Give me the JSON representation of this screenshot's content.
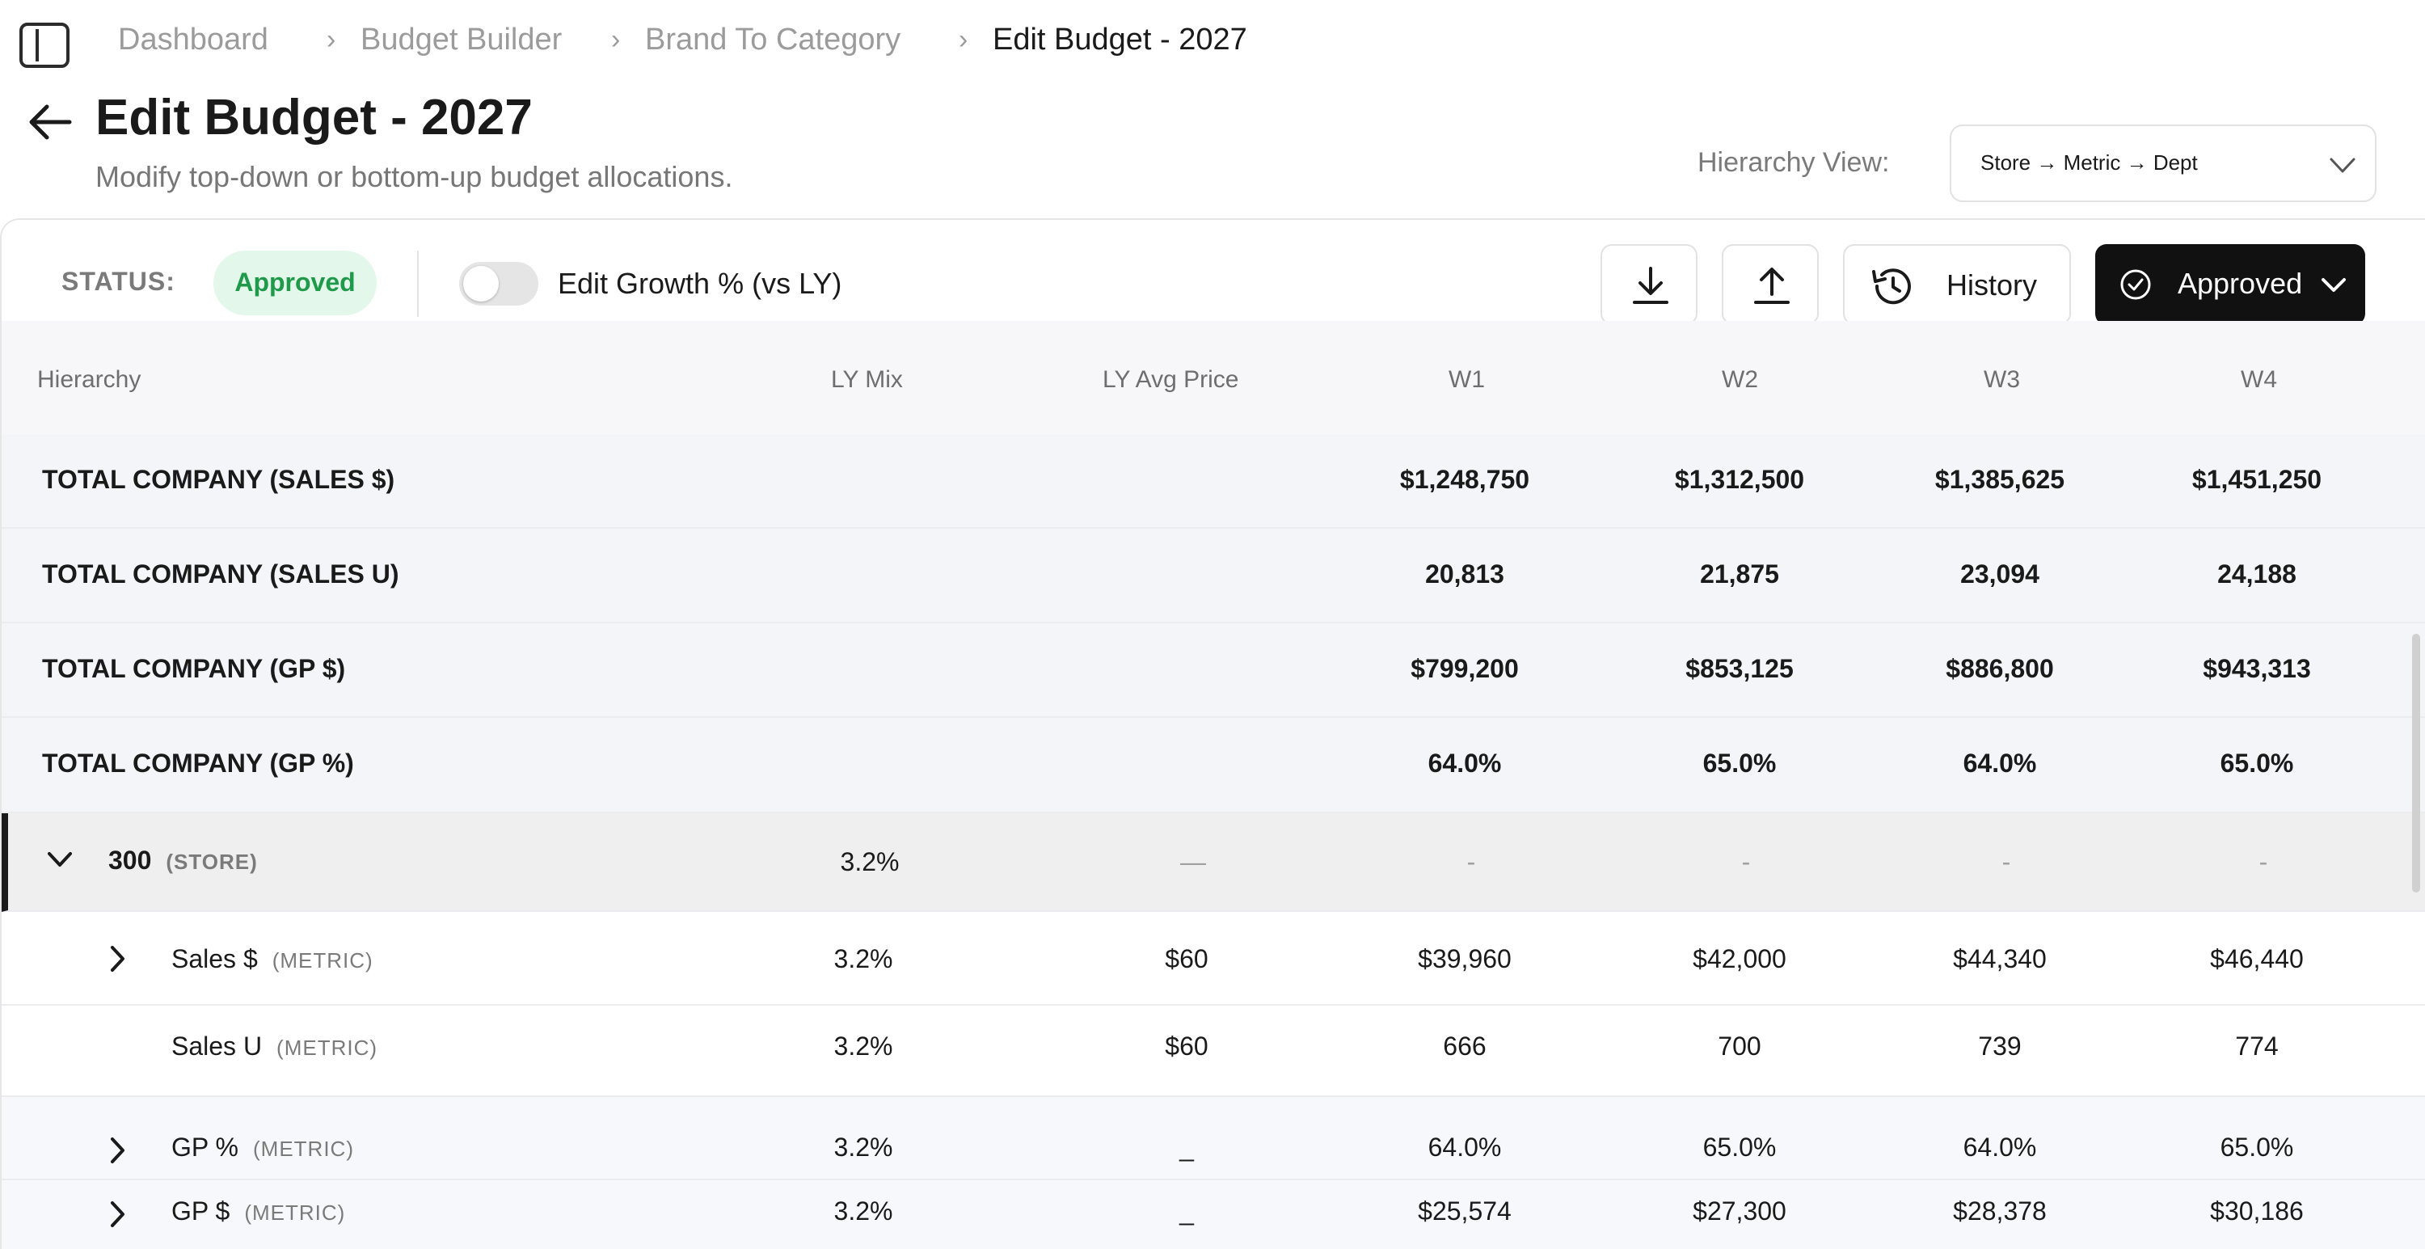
{
  "breadcrumb": {
    "items": [
      "Dashboard",
      "Budget Builder",
      "Brand To Category",
      "Edit Budget - 2027"
    ],
    "separator": "›"
  },
  "header": {
    "title": "Edit Budget - 2027",
    "subtitle": "Modify top-down or bottom-up budget allocations.",
    "hierarchy_label": "Hierarchy View:",
    "hierarchy_value": "Store → Metric → Dept"
  },
  "toolbar": {
    "status_label": "STATUS:",
    "status_value": "Approved",
    "toggle_label": "Edit Growth % (vs LY)",
    "toggle_on": false,
    "history_label": "History",
    "approved_label": "Approved"
  },
  "colors": {
    "status_bg": "#e3f7ea",
    "status_text": "#1f9a4a",
    "primary_button": "#111111"
  },
  "icons": [
    "sidebar-toggle-icon",
    "back-arrow-icon",
    "chevron-down-icon",
    "download-icon",
    "upload-icon",
    "history-icon",
    "check-circle-icon",
    "chevron-right-icon"
  ],
  "table": {
    "columns": [
      "Hierarchy",
      "LY Mix",
      "LY Avg Price",
      "W1",
      "W2",
      "W3",
      "W4"
    ],
    "totals": [
      {
        "label": "TOTAL COMPANY (SALES $)",
        "w1": "$1,248,750",
        "w2": "$1,312,500",
        "w3": "$1,385,625",
        "w4": "$1,451,250"
      },
      {
        "label": "TOTAL COMPANY (SALES U)",
        "w1": "20,813",
        "w2": "21,875",
        "w3": "23,094",
        "w4": "24,188"
      },
      {
        "label": "TOTAL COMPANY (GP $)",
        "w1": "$799,200",
        "w2": "$853,125",
        "w3": "$886,800",
        "w4": "$943,313"
      },
      {
        "label": "TOTAL COMPANY (GP %)",
        "w1": "64.0%",
        "w2": "65.0%",
        "w3": "64.0%",
        "w4": "65.0%"
      }
    ],
    "store": {
      "label": "300",
      "tag": "(STORE)",
      "mix": "3.2%",
      "price": "—",
      "w1": "-",
      "w2": "-",
      "w3": "-",
      "w4": "-"
    },
    "metrics": [
      {
        "label": "Sales $",
        "tag": "(METRIC)",
        "mix": "3.2%",
        "price": "$60",
        "w1": "$39,960",
        "w2": "$42,000",
        "w3": "$44,340",
        "w4": "$46,440"
      },
      {
        "label": "Sales U",
        "tag": "(METRIC)",
        "mix": "3.2%",
        "price": "$60",
        "w1": "666",
        "w2": "700",
        "w3": "739",
        "w4": "774"
      },
      {
        "label": "GP %",
        "tag": "(METRIC)",
        "mix": "3.2%",
        "price": "_",
        "w1": "64.0%",
        "w2": "65.0%",
        "w3": "64.0%",
        "w4": "65.0%"
      },
      {
        "label": "GP $",
        "tag": "(METRIC)",
        "mix": "3.2%",
        "price": "_",
        "w1": "$25,574",
        "w2": "$27,300",
        "w3": "$28,378",
        "w4": "$30,186"
      }
    ]
  }
}
